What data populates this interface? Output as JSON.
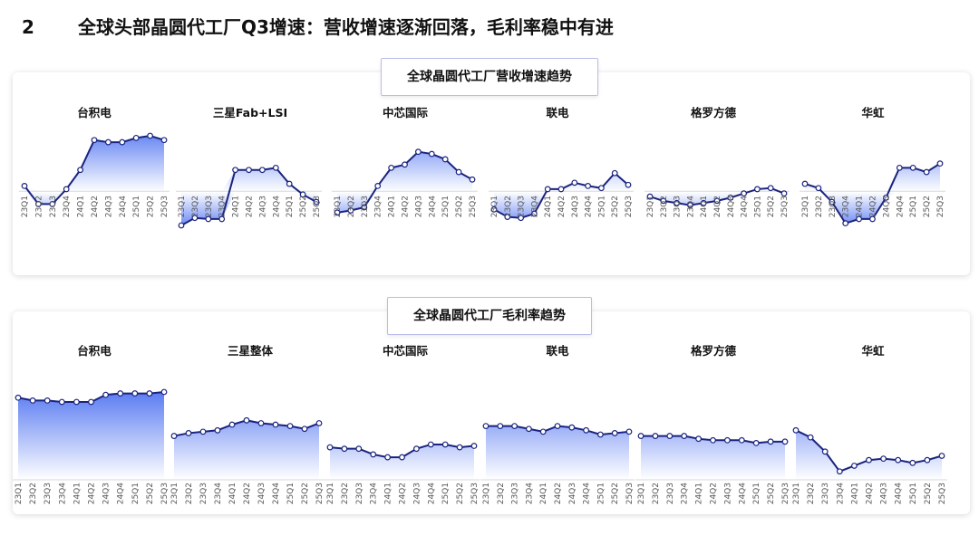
{
  "page": {
    "number": "2",
    "title": "全球头部晶圆代工厂Q3增速：营收增速逐渐回落，毛利率稳中有进"
  },
  "colors": {
    "line": "#1a237e",
    "fill_top": "#5b7cf2",
    "fill_bottom": "#ffffff",
    "marker_fill": "#ffffff"
  },
  "revenue_panel": {
    "title": "全球晶圆代工厂营收增速趋势"
  },
  "margin_panel": {
    "title": "全球晶圆代工厂毛利率趋势"
  },
  "chart_data": [
    {
      "type": "area",
      "title": "台积电",
      "group": "全球晶圆代工厂营收增速趋势",
      "x": [
        "23Q1",
        "23Q2",
        "23Q3",
        "23Q4",
        "24Q1",
        "24Q2",
        "24Q3",
        "24Q4",
        "25Q1",
        "25Q2",
        "25Q3"
      ],
      "y": [
        0.05,
        -0.12,
        -0.12,
        0.02,
        0.2,
        0.48,
        0.46,
        0.46,
        0.5,
        0.52,
        0.48
      ]
    },
    {
      "type": "area",
      "title": "三星Fab+LSI",
      "group": "全球晶圆代工厂营收增速趋势",
      "x": [
        "23Q1",
        "23Q2",
        "23Q3",
        "23Q4",
        "24Q1",
        "24Q2",
        "24Q3",
        "24Q4",
        "25Q1",
        "25Q2",
        "25Q3"
      ],
      "y": [
        -0.32,
        -0.25,
        -0.26,
        -0.26,
        0.2,
        0.2,
        0.2,
        0.22,
        0.07,
        -0.03,
        -0.1
      ]
    },
    {
      "type": "area",
      "title": "中芯国际",
      "group": "全球晶圆代工厂营收增速趋势",
      "x": [
        "23Q1",
        "23Q2",
        "23Q3",
        "23Q4",
        "24Q1",
        "24Q2",
        "24Q3",
        "24Q4",
        "25Q1",
        "25Q2",
        "25Q3"
      ],
      "y": [
        -0.2,
        -0.18,
        -0.15,
        0.05,
        0.22,
        0.25,
        0.37,
        0.35,
        0.3,
        0.18,
        0.11
      ]
    },
    {
      "type": "area",
      "title": "联电",
      "group": "全球晶圆代工厂营收增速趋势",
      "x": [
        "23Q1",
        "23Q2",
        "23Q3",
        "23Q4",
        "24Q1",
        "24Q2",
        "24Q3",
        "24Q4",
        "25Q1",
        "25Q2",
        "25Q3"
      ],
      "y": [
        -0.17,
        -0.24,
        -0.25,
        -0.21,
        0.02,
        0.02,
        0.08,
        0.05,
        0.03,
        0.17,
        0.06
      ]
    },
    {
      "type": "area",
      "title": "格罗方德",
      "group": "全球晶圆代工厂营收增速趋势",
      "x": [
        "23Q1",
        "23Q2",
        "23Q3",
        "23Q4",
        "24Q1",
        "24Q2",
        "24Q3",
        "24Q4",
        "25Q1",
        "25Q2",
        "25Q3"
      ],
      "y": [
        -0.05,
        -0.09,
        -0.11,
        -0.13,
        -0.11,
        -0.09,
        -0.06,
        -0.02,
        0.02,
        0.03,
        -0.02
      ]
    },
    {
      "type": "area",
      "title": "华虹",
      "group": "全球晶圆代工厂营收增速趋势",
      "x": [
        "23Q1",
        "23Q2",
        "23Q3",
        "23Q4",
        "24Q1",
        "24Q2",
        "24Q3",
        "24Q4",
        "25Q1",
        "25Q2",
        "25Q3"
      ],
      "y": [
        0.07,
        0.03,
        -0.1,
        -0.3,
        -0.26,
        -0.26,
        -0.06,
        0.22,
        0.22,
        0.18,
        0.26
      ]
    },
    {
      "type": "area",
      "title": "台积电",
      "group": "全球晶圆代工厂毛利率趋势",
      "x": [
        "23Q1",
        "23Q2",
        "23Q3",
        "23Q4",
        "24Q1",
        "24Q2",
        "24Q3",
        "24Q4",
        "25Q1",
        "25Q2",
        "25Q3"
      ],
      "y": [
        0.56,
        0.54,
        0.54,
        0.53,
        0.53,
        0.53,
        0.58,
        0.59,
        0.59,
        0.59,
        0.6
      ]
    },
    {
      "type": "area",
      "title": "三星整体",
      "group": "全球晶圆代工厂毛利率趋势",
      "x": [
        "23Q1",
        "23Q2",
        "23Q3",
        "23Q4",
        "24Q1",
        "24Q2",
        "24Q3",
        "24Q4",
        "25Q1",
        "25Q2",
        "25Q3"
      ],
      "y": [
        0.29,
        0.31,
        0.32,
        0.33,
        0.37,
        0.4,
        0.38,
        0.37,
        0.36,
        0.34,
        0.38
      ]
    },
    {
      "type": "area",
      "title": "中芯国际",
      "group": "全球晶圆代工厂毛利率趋势",
      "x": [
        "23Q1",
        "23Q2",
        "23Q3",
        "23Q4",
        "24Q1",
        "24Q2",
        "24Q3",
        "24Q4",
        "25Q1",
        "25Q2",
        "25Q3"
      ],
      "y": [
        0.21,
        0.2,
        0.2,
        0.16,
        0.14,
        0.14,
        0.2,
        0.23,
        0.23,
        0.21,
        0.22
      ]
    },
    {
      "type": "area",
      "title": "联电",
      "group": "全球晶圆代工厂毛利率趋势",
      "x": [
        "23Q1",
        "23Q2",
        "23Q3",
        "23Q4",
        "24Q1",
        "24Q2",
        "24Q3",
        "24Q4",
        "25Q1",
        "25Q2",
        "25Q3"
      ],
      "y": [
        0.36,
        0.36,
        0.36,
        0.34,
        0.32,
        0.36,
        0.35,
        0.33,
        0.3,
        0.31,
        0.32
      ]
    },
    {
      "type": "area",
      "title": "格罗方德",
      "group": "全球晶圆代工厂毛利率趋势",
      "x": [
        "23Q1",
        "23Q2",
        "23Q3",
        "23Q4",
        "24Q1",
        "24Q2",
        "24Q3",
        "24Q4",
        "25Q1",
        "25Q2",
        "25Q3"
      ],
      "y": [
        0.29,
        0.29,
        0.29,
        0.29,
        0.27,
        0.26,
        0.26,
        0.26,
        0.24,
        0.25,
        0.25
      ]
    },
    {
      "type": "area",
      "title": "华虹",
      "group": "全球晶圆代工厂毛利率趋势",
      "x": [
        "23Q1",
        "23Q2",
        "23Q3",
        "23Q4",
        "24Q1",
        "24Q2",
        "24Q3",
        "24Q4",
        "25Q1",
        "25Q2",
        "25Q3"
      ],
      "y": [
        0.33,
        0.28,
        0.18,
        0.04,
        0.08,
        0.12,
        0.13,
        0.12,
        0.1,
        0.12,
        0.15
      ]
    }
  ]
}
